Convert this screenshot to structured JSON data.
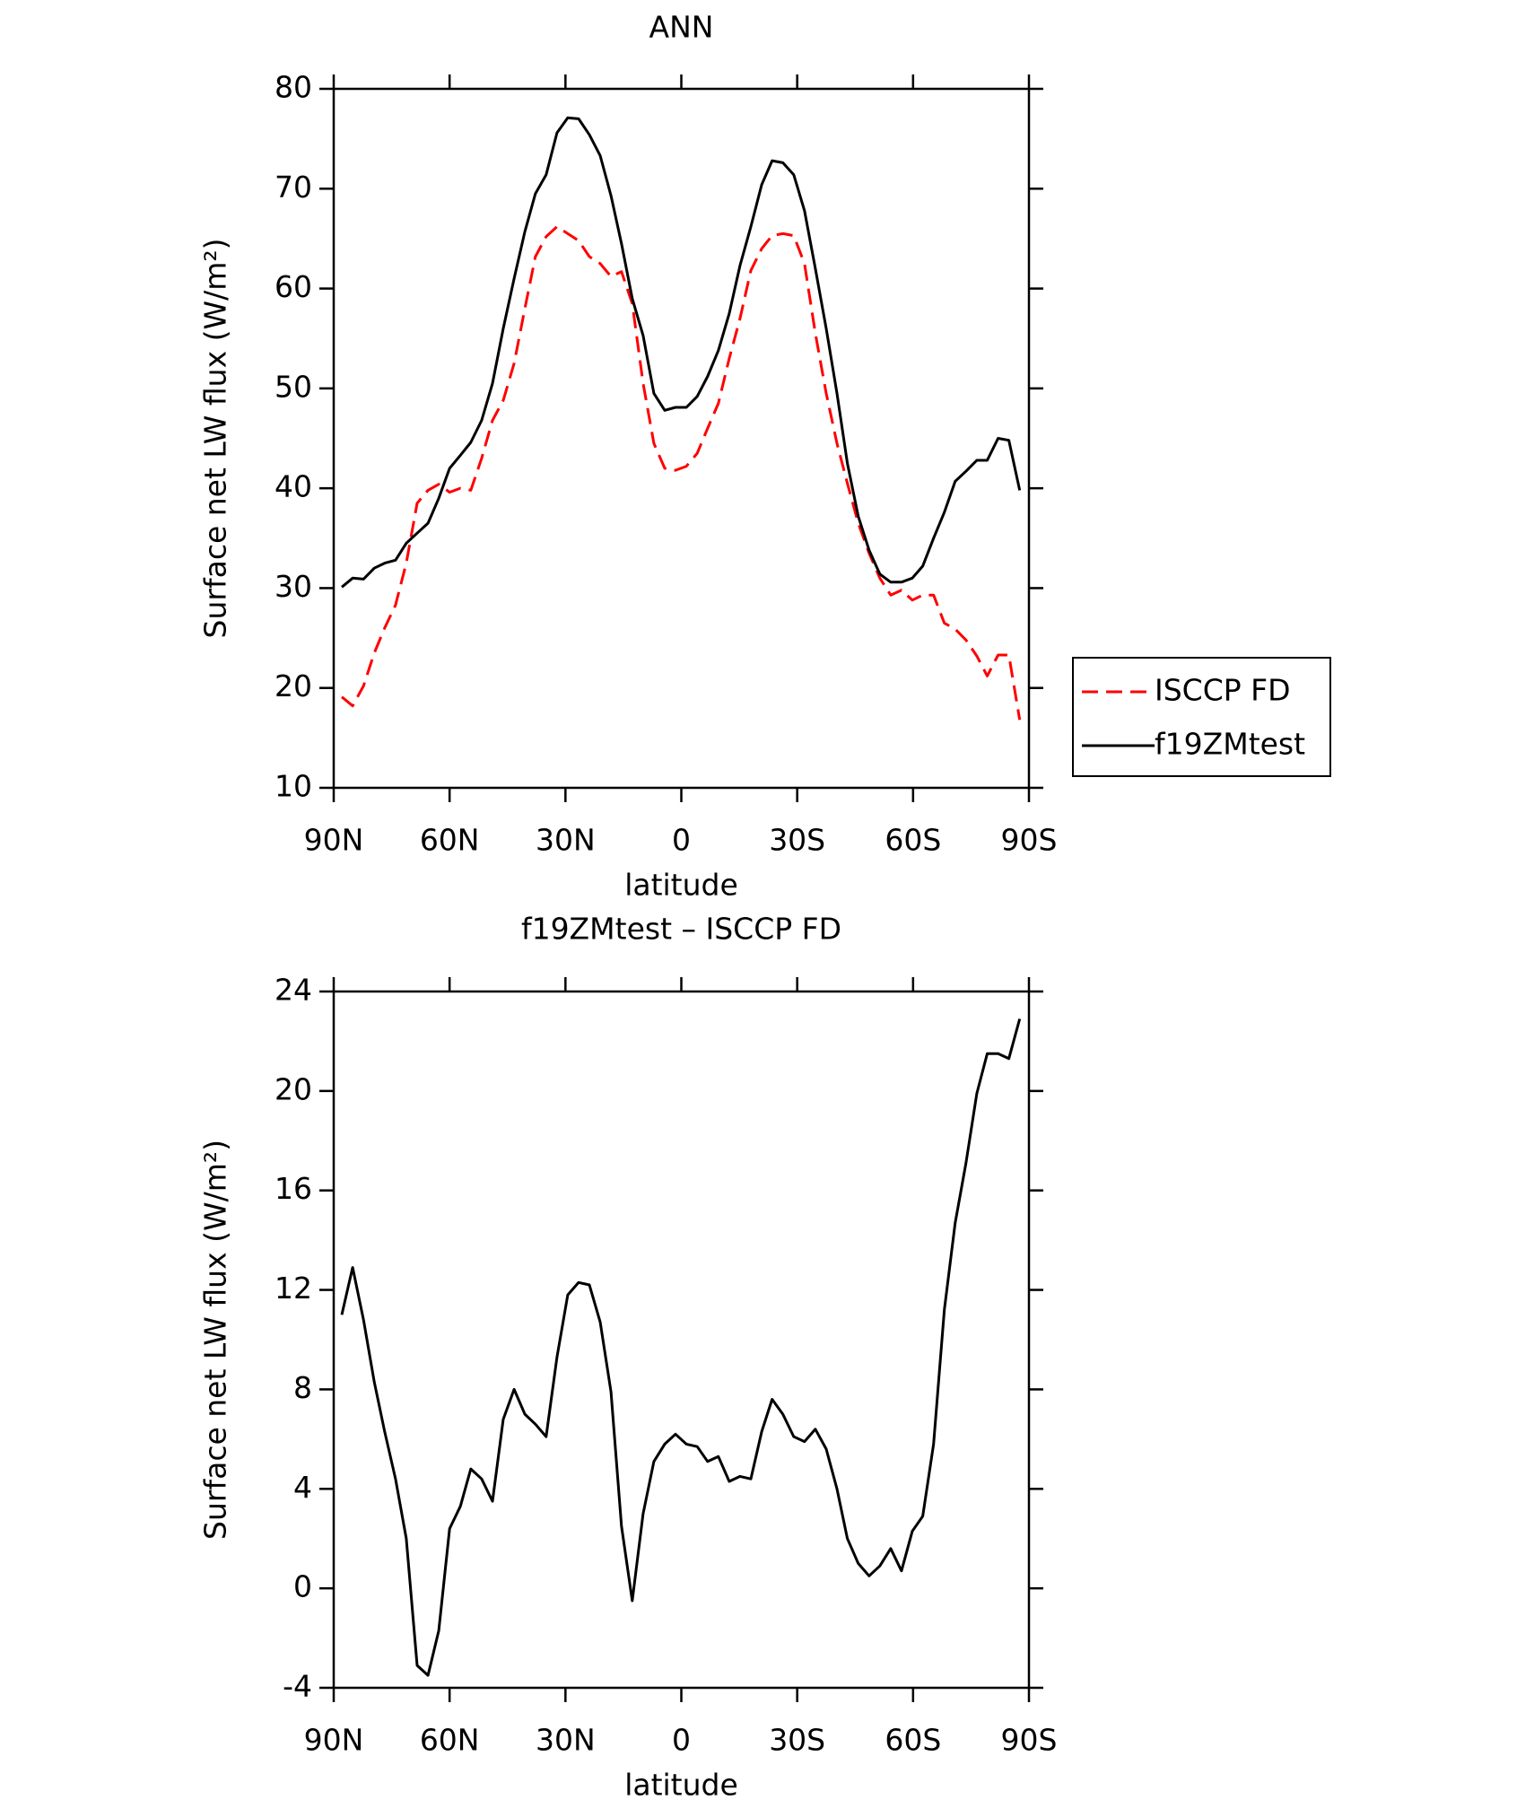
{
  "chart_data": [
    {
      "type": "line",
      "title": "ANN",
      "xlabel": "latitude",
      "ylabel": "Surface net LW flux (W/m²)",
      "x": [
        87.9,
        85.1,
        82.3,
        79.5,
        76.8,
        74.0,
        71.2,
        68.4,
        65.6,
        62.8,
        60.0,
        57.2,
        54.5,
        51.7,
        48.9,
        46.1,
        43.3,
        40.5,
        37.8,
        35.0,
        32.2,
        29.4,
        26.6,
        23.8,
        21.0,
        18.2,
        15.5,
        12.7,
        9.9,
        7.1,
        4.3,
        1.5,
        -1.3,
        -4.1,
        -6.8,
        -9.6,
        -12.4,
        -15.2,
        -18.0,
        -20.8,
        -23.5,
        -26.3,
        -29.1,
        -31.9,
        -34.7,
        -37.5,
        -40.3,
        -43.0,
        -45.8,
        -48.6,
        -51.4,
        -54.2,
        -57.0,
        -59.8,
        -62.5,
        -65.3,
        -68.1,
        -70.9,
        -73.7,
        -76.5,
        -79.2,
        -82.0,
        -84.8,
        -87.6
      ],
      "series": [
        {
          "name": "ISCCP FD",
          "color": "#ff0000",
          "style": "dashed",
          "values": [
            19.1,
            18.2,
            20.2,
            23.5,
            26,
            28.3,
            32.5,
            38.5,
            39.8,
            40.4,
            39.6,
            40,
            39.8,
            43,
            46.8,
            48.8,
            52.5,
            58,
            63.2,
            65.2,
            66.2,
            65.5,
            64.8,
            63.2,
            62.5,
            61.2,
            61.7,
            58.5,
            50.5,
            44.5,
            42,
            41.8,
            42.2,
            43.5,
            46,
            48.5,
            53,
            57,
            61.8,
            64,
            65.3,
            65.5,
            65.3,
            62.5,
            55.5,
            49.5,
            44.5,
            40.5,
            36.5,
            33.5,
            31,
            29.3,
            29.8,
            28.8,
            29.3,
            29.3,
            26.5,
            25.9,
            24.8,
            23.2,
            21.2,
            23.3,
            23.3,
            16.8
          ]
        },
        {
          "name": "f19ZMtest",
          "color": "#000000",
          "style": "solid",
          "values": [
            30.1,
            31,
            30.9,
            32,
            32.5,
            32.8,
            34.5,
            35.5,
            36.5,
            39,
            42,
            43.3,
            44.6,
            46.8,
            50.5,
            56,
            61,
            65.7,
            69.5,
            71.4,
            75.6,
            77.1,
            77,
            75.4,
            73.3,
            69.3,
            64.5,
            59,
            55.3,
            49.5,
            47.8,
            48.1,
            48.1,
            49.2,
            51.2,
            53.8,
            57.5,
            62.3,
            66.2,
            70.4,
            72.8,
            72.6,
            71.4,
            67.8,
            62,
            56,
            49.5,
            42.5,
            37.2,
            33.8,
            31.4,
            30.6,
            30.6,
            31,
            32.2,
            35,
            37.6,
            40.7,
            41.7,
            42.8,
            42.8,
            45,
            44.8,
            39.8
          ]
        }
      ],
      "xlim": [
        90,
        -90
      ],
      "ylim": [
        10,
        80
      ],
      "xticks": [
        {
          "value": 90,
          "label": "90N"
        },
        {
          "value": 60,
          "label": "60N"
        },
        {
          "value": 30,
          "label": "30N"
        },
        0,
        {
          "value": -30,
          "label": "30S"
        },
        {
          "value": -60,
          "label": "60S"
        },
        {
          "value": -90,
          "label": "90S"
        }
      ],
      "yticks": [
        10,
        20,
        30,
        40,
        50,
        60,
        70,
        80
      ],
      "legend": "right"
    },
    {
      "type": "line",
      "title": "f19ZMtest – ISCCP FD",
      "xlabel": "latitude",
      "ylabel": "Surface net LW flux (W/m²)",
      "x": [
        87.9,
        85.1,
        82.3,
        79.5,
        76.8,
        74.0,
        71.2,
        68.4,
        65.6,
        62.8,
        60.0,
        57.2,
        54.5,
        51.7,
        48.9,
        46.1,
        43.3,
        40.5,
        37.8,
        35.0,
        32.2,
        29.4,
        26.6,
        23.8,
        21.0,
        18.2,
        15.5,
        12.7,
        9.9,
        7.1,
        4.3,
        1.5,
        -1.3,
        -4.1,
        -6.8,
        -9.6,
        -12.4,
        -15.2,
        -18.0,
        -20.8,
        -23.5,
        -26.3,
        -29.1,
        -31.9,
        -34.7,
        -37.5,
        -40.3,
        -43.0,
        -45.8,
        -48.6,
        -51.4,
        -54.2,
        -57.0,
        -59.8,
        -62.5,
        -65.3,
        -68.1,
        -70.9,
        -73.7,
        -76.5,
        -79.2,
        -82.0,
        -84.8,
        -87.6
      ],
      "series": [
        {
          "color": "#000000",
          "style": "solid",
          "values": [
            11,
            12.9,
            10.8,
            8.3,
            6.3,
            4.4,
            2,
            -3.1,
            -3.5,
            -1.7,
            2.4,
            3.3,
            4.8,
            4.4,
            3.5,
            6.8,
            8,
            7,
            6.6,
            6.1,
            9.3,
            11.8,
            12.3,
            12.2,
            10.7,
            7.9,
            2.5,
            -0.5,
            3,
            5.1,
            5.8,
            6.2,
            5.8,
            5.7,
            5.1,
            5.3,
            4.3,
            4.5,
            4.4,
            6.3,
            7.6,
            7,
            6.1,
            5.9,
            6.4,
            5.6,
            4,
            2,
            1,
            0.5,
            0.9,
            1.6,
            0.7,
            2.3,
            2.9,
            5.8,
            11.2,
            14.7,
            17.1,
            19.9,
            21.5,
            21.5,
            21.3,
            22.9
          ]
        }
      ],
      "xlim": [
        90,
        -90
      ],
      "ylim": [
        -4,
        24
      ],
      "xticks": [
        {
          "value": 90,
          "label": "90N"
        },
        {
          "value": 60,
          "label": "60N"
        },
        {
          "value": 30,
          "label": "30N"
        },
        0,
        {
          "value": -30,
          "label": "30S"
        },
        {
          "value": -60,
          "label": "60S"
        },
        {
          "value": -90,
          "label": "90S"
        }
      ],
      "yticks": [
        -4,
        0,
        4,
        8,
        12,
        16,
        20,
        24
      ]
    }
  ]
}
